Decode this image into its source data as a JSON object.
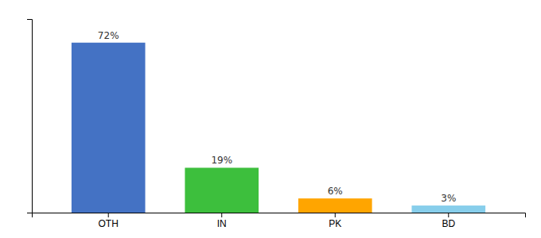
{
  "chart_data": {
    "type": "bar",
    "categories": [
      "OTH",
      "IN",
      "PK",
      "BD"
    ],
    "values": [
      72,
      19,
      6,
      3
    ],
    "value_labels": [
      "72%",
      "19%",
      "6%",
      "3%"
    ],
    "colors": [
      "#4472C4",
      "#3DBF3D",
      "#FFA500",
      "#87CEEB"
    ],
    "ylim": [
      0,
      82
    ],
    "data_labels": true,
    "tick_labels": "x"
  }
}
